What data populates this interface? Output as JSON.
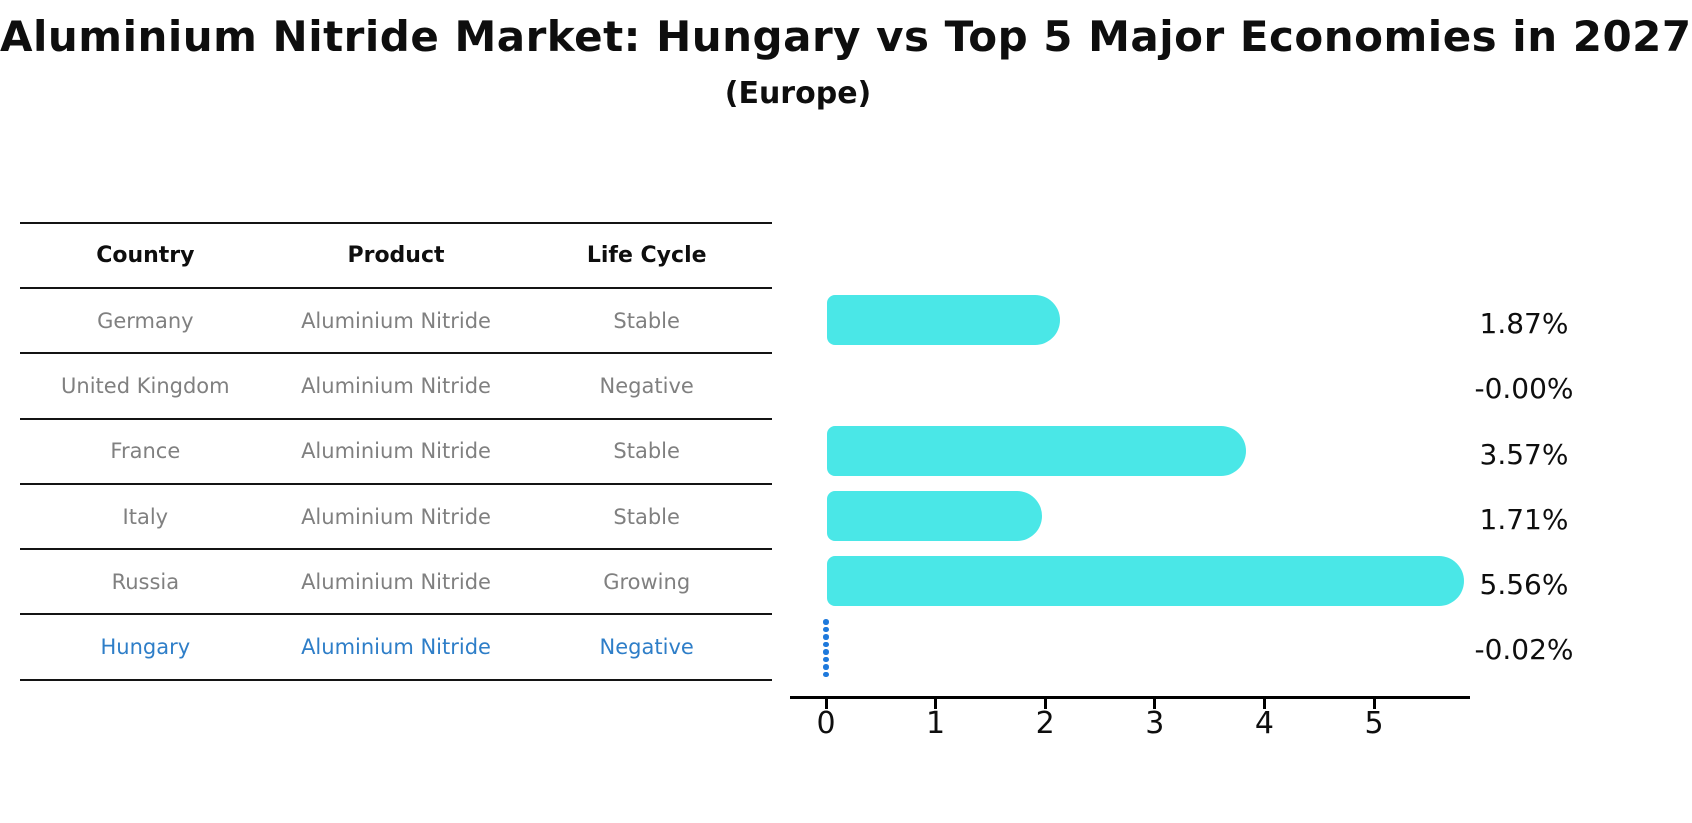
{
  "header": {
    "title": "Aluminium Nitride Market: Hungary vs Top 5 Major Economies in 2027",
    "subtitle": "(Europe)"
  },
  "table": {
    "columns": [
      "Country",
      "Product",
      "Life Cycle"
    ],
    "rows": [
      {
        "country": "Germany",
        "product": "Aluminium Nitride",
        "life_cycle": "Stable"
      },
      {
        "country": "United Kingdom",
        "product": "Aluminium Nitride",
        "life_cycle": "Negative"
      },
      {
        "country": "France",
        "product": "Aluminium Nitride",
        "life_cycle": "Stable"
      },
      {
        "country": "Italy",
        "product": "Aluminium Nitride",
        "life_cycle": "Stable"
      },
      {
        "country": "Russia",
        "product": "Aluminium Nitride",
        "life_cycle": "Growing"
      },
      {
        "country": "Hungary",
        "product": "Aluminium Nitride",
        "life_cycle": "Negative"
      }
    ]
  },
  "chart_data": {
    "type": "bar",
    "orientation": "horizontal",
    "title": "Aluminium Nitride Market: Hungary vs Top 5 Major Economies in 2027 (Europe)",
    "categories": [
      "Germany",
      "United Kingdom",
      "France",
      "Italy",
      "Russia",
      "Hungary"
    ],
    "values": [
      1.87,
      -0.0,
      3.57,
      1.71,
      5.56,
      -0.02
    ],
    "value_labels": [
      "1.87%",
      "-0.00%",
      "3.57%",
      "1.71%",
      "5.56%",
      "-0.02%"
    ],
    "xticks": [
      0,
      1,
      2,
      3,
      4,
      5
    ],
    "xlim": [
      -0.33,
      5.88
    ],
    "grid": "off",
    "legend": "none",
    "highlight_category": "Hungary",
    "highlight_marker": "dotted-line-at-zero"
  },
  "colors": {
    "bar": "#4AE7E7",
    "highlight": "#2E7EC8",
    "marker": "#1E79DC",
    "row_text": "#808080",
    "header_text": "#0e0e0e",
    "axis": "#000000"
  }
}
